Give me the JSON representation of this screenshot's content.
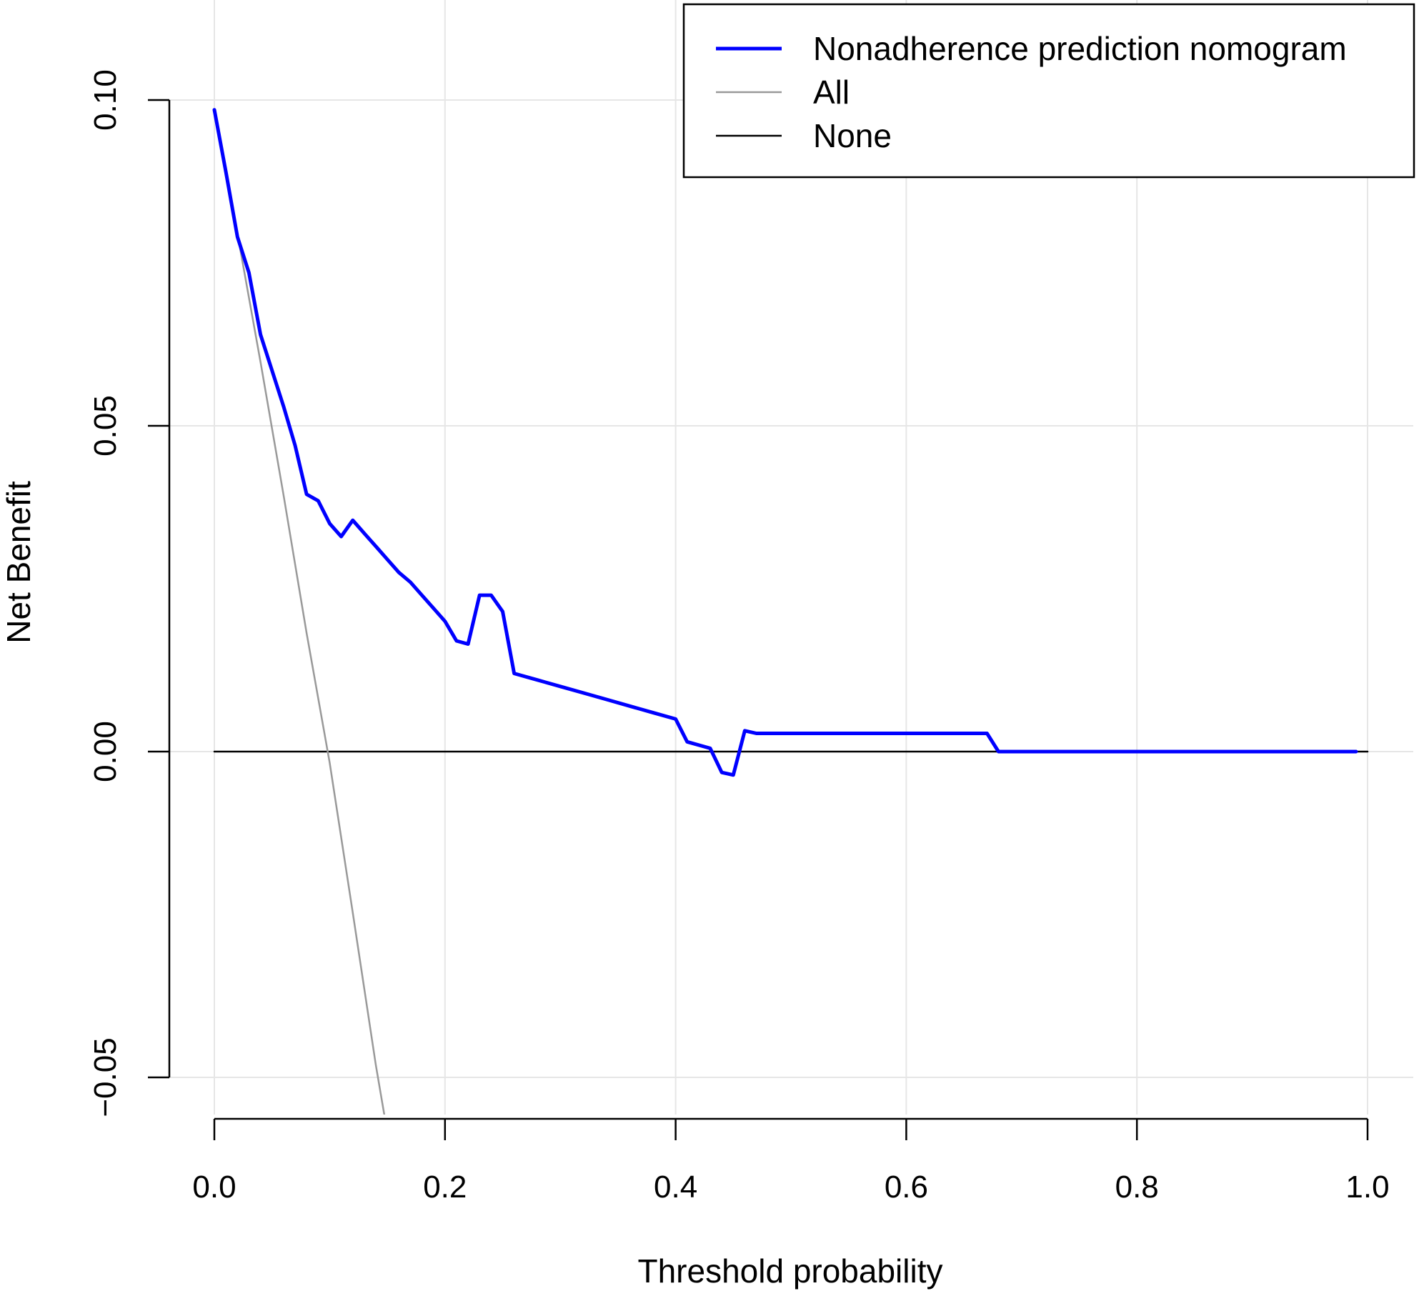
{
  "chart_data": {
    "type": "line",
    "title": "",
    "xlabel": "Threshold probability",
    "ylabel": "Net Benefit",
    "xlim": [
      0.0,
      1.0
    ],
    "ylim": [
      -0.05,
      0.1
    ],
    "x_ticks": [
      {
        "value": 0.0,
        "label": "0.0"
      },
      {
        "value": 0.2,
        "label": "0.2"
      },
      {
        "value": 0.4,
        "label": "0.4"
      },
      {
        "value": 0.6,
        "label": "0.6"
      },
      {
        "value": 0.8,
        "label": "0.8"
      },
      {
        "value": 1.0,
        "label": "1.0"
      }
    ],
    "y_ticks": [
      {
        "value": -0.05,
        "label": "−0.05"
      },
      {
        "value": 0.0,
        "label": "0.00"
      },
      {
        "value": 0.05,
        "label": "0.05"
      },
      {
        "value": 0.1,
        "label": "0.10"
      }
    ],
    "grid": true,
    "legend_position": "top-right",
    "series": [
      {
        "name": "Nonadherence prediction nomogram",
        "color": "#0000ff",
        "points": [
          [
            0.0,
            0.0985
          ],
          [
            0.01,
            0.089
          ],
          [
            0.02,
            0.079
          ],
          [
            0.03,
            0.0735
          ],
          [
            0.04,
            0.064
          ],
          [
            0.05,
            0.0585
          ],
          [
            0.06,
            0.053
          ],
          [
            0.07,
            0.047
          ],
          [
            0.08,
            0.0395
          ],
          [
            0.09,
            0.0385
          ],
          [
            0.1,
            0.035
          ],
          [
            0.11,
            0.033
          ],
          [
            0.12,
            0.0355
          ],
          [
            0.13,
            0.0335
          ],
          [
            0.14,
            0.0315
          ],
          [
            0.15,
            0.0295
          ],
          [
            0.16,
            0.0275
          ],
          [
            0.17,
            0.026
          ],
          [
            0.18,
            0.024
          ],
          [
            0.19,
            0.022
          ],
          [
            0.2,
            0.02
          ],
          [
            0.21,
            0.017
          ],
          [
            0.22,
            0.0165
          ],
          [
            0.23,
            0.024
          ],
          [
            0.24,
            0.024
          ],
          [
            0.25,
            0.0215
          ],
          [
            0.26,
            0.012
          ],
          [
            0.28,
            0.011
          ],
          [
            0.3,
            0.01
          ],
          [
            0.32,
            0.009
          ],
          [
            0.34,
            0.008
          ],
          [
            0.36,
            0.007
          ],
          [
            0.38,
            0.006
          ],
          [
            0.4,
            0.005
          ],
          [
            0.41,
            0.0015
          ],
          [
            0.43,
            0.0005
          ],
          [
            0.44,
            -0.0032
          ],
          [
            0.45,
            -0.0036
          ],
          [
            0.46,
            0.0032
          ],
          [
            0.47,
            0.0028
          ],
          [
            0.5,
            0.0028
          ],
          [
            0.55,
            0.0028
          ],
          [
            0.6,
            0.0028
          ],
          [
            0.65,
            0.0028
          ],
          [
            0.67,
            0.0028
          ],
          [
            0.68,
            0.0
          ],
          [
            0.7,
            0.0
          ],
          [
            0.8,
            0.0
          ],
          [
            0.9,
            0.0
          ],
          [
            0.99,
            0.0
          ]
        ]
      },
      {
        "name": "All",
        "color": "#999999",
        "points": [
          [
            0.0,
            0.0985
          ],
          [
            0.02,
            0.0795
          ],
          [
            0.04,
            0.0598
          ],
          [
            0.06,
            0.0394
          ],
          [
            0.08,
            0.0182
          ],
          [
            0.1,
            -0.0017
          ],
          [
            0.12,
            -0.0247
          ],
          [
            0.14,
            -0.0481
          ],
          [
            0.148,
            -0.0564
          ]
        ]
      },
      {
        "name": "None",
        "color": "#000000",
        "points": [
          [
            0.0,
            0.0
          ],
          [
            1.0,
            0.0
          ]
        ]
      }
    ]
  }
}
